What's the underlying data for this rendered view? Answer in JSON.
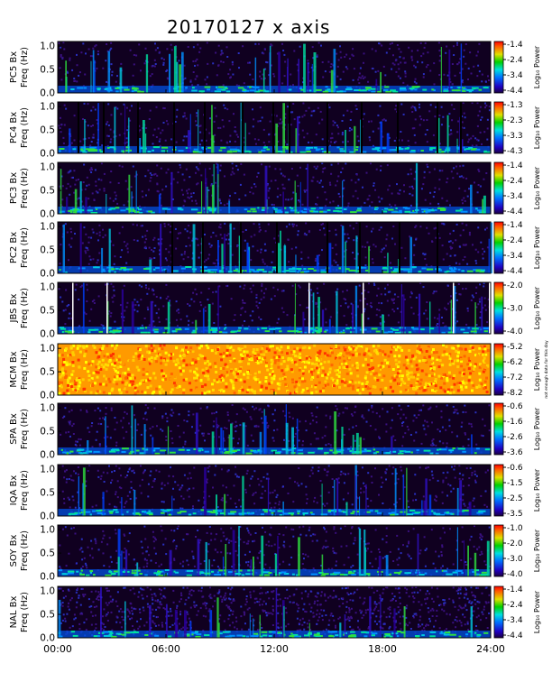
{
  "chart_data": {
    "type": "heatmap",
    "title": "20170127 x axis",
    "xlabel": "",
    "x_ticks": [
      "00:00",
      "06:00",
      "12:00",
      "18:00",
      "24:00"
    ],
    "xlim": [
      0,
      24
    ],
    "y_ticks": [
      "0.0",
      "0.5",
      "1.0"
    ],
    "ylim": [
      0,
      1.1
    ],
    "colorbar_label": "Log₁₀ Power",
    "colormap": "rainbow",
    "panels": [
      {
        "station": "PC5 Bx",
        "ylabel": "Freq (Hz)",
        "cbar_ticks": [
          "-1.4",
          "-2.4",
          "-3.4",
          "-4.4"
        ],
        "background": "quiet",
        "gaps": []
      },
      {
        "station": "PC4 Bx",
        "ylabel": "Freq (Hz)",
        "cbar_ticks": [
          "-1.3",
          "-2.3",
          "-3.3",
          "-4.3"
        ],
        "background": "quiet",
        "gaps": [
          1.1,
          2.5,
          4.4,
          6.4,
          8.1,
          10.2,
          11.9,
          12.8,
          14.9,
          16.8,
          18.8,
          21.0,
          22.3
        ]
      },
      {
        "station": "PC3 Bx",
        "ylabel": "Freq (Hz)",
        "cbar_ticks": [
          "-1.4",
          "-2.4",
          "-3.4",
          "-4.4"
        ],
        "background": "quiet",
        "gaps": []
      },
      {
        "station": "PC2 Bx",
        "ylabel": "Freq (Hz)",
        "cbar_ticks": [
          "-1.4",
          "-2.4",
          "-3.4",
          "-4.4"
        ],
        "background": "quiet",
        "gaps": [
          6.3,
          8.0,
          10.1,
          12.1,
          14.9,
          16.7,
          18.9,
          21.0
        ]
      },
      {
        "station": "JBS Bx",
        "ylabel": "Freq (Hz)",
        "cbar_ticks": [
          "-2.0",
          "-3.0",
          "-4.0"
        ],
        "background": "quiet",
        "white_lines": [
          0.8,
          2.7,
          13.9,
          16.9,
          21.9,
          23.9
        ]
      },
      {
        "station": "MCM Bx",
        "ylabel": "Freq (Hz)",
        "cbar_ticks": [
          "-5.2",
          "-6.2",
          "-7.2",
          "-8.2"
        ],
        "background": "noise",
        "cbar_note": "not enough data for this day"
      },
      {
        "station": "SPA Bx",
        "ylabel": "Freq (Hz)",
        "cbar_ticks": [
          "-0.6",
          "-1.6",
          "-2.6",
          "-3.6"
        ],
        "background": "quiet"
      },
      {
        "station": "IQA Bx",
        "ylabel": "Freq (Hz)",
        "cbar_ticks": [
          "-0.6",
          "-1.5",
          "-2.5",
          "-3.5"
        ],
        "background": "quiet"
      },
      {
        "station": "SOY Bx",
        "ylabel": "Freq (Hz)",
        "cbar_ticks": [
          "-1.0",
          "-2.0",
          "-3.0",
          "-4.0"
        ],
        "background": "quiet"
      },
      {
        "station": "NAL Bx",
        "ylabel": "Freq (Hz)",
        "cbar_ticks": [
          "-1.4",
          "-2.4",
          "-3.4",
          "-4.4"
        ],
        "background": "noisy"
      }
    ]
  }
}
